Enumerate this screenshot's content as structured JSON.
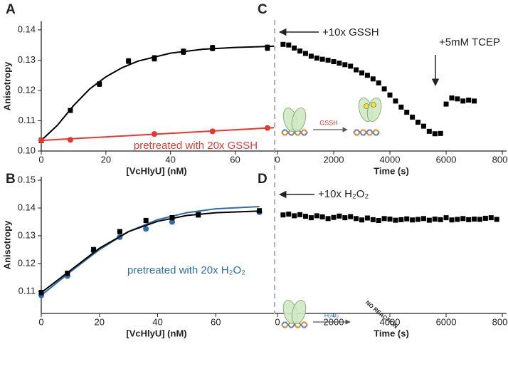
{
  "chart_data": [
    {
      "type": "scatter",
      "panel_label": "A",
      "x_label": "[VcHlyU] (nM)",
      "y_label": "Anisotropy",
      "xlim": [
        0,
        72
      ],
      "ylim": [
        0.1,
        0.1428
      ],
      "xticks": [
        0,
        20,
        40,
        60
      ],
      "yticks": [
        {
          "value": 0.1,
          "label": "0.10"
        },
        0.11,
        0.12,
        0.13,
        0.14
      ],
      "series": [
        {
          "color": "#000000",
          "marker": "square",
          "x": [
            0,
            9,
            18,
            27,
            35,
            44,
            53,
            70
          ],
          "values": [
            0.1035,
            0.1134,
            0.1221,
            0.1297,
            0.1306,
            0.1328,
            0.134,
            0.1341
          ],
          "errors": [
            0.0008,
            0.0007,
            0.0008,
            0.0008,
            0.0009,
            0.0009,
            0.0009,
            0.0009
          ]
        },
        {
          "color": "#000000",
          "marker": "none",
          "x": [
            0,
            5,
            10,
            15,
            20,
            25,
            30,
            40,
            50,
            60,
            72
          ],
          "values": [
            0.1035,
            0.1085,
            0.115,
            0.1205,
            0.1245,
            0.1275,
            0.1297,
            0.1323,
            0.1336,
            0.1342,
            0.1346
          ]
        },
        {
          "color": "#e8372f",
          "marker": "circle",
          "x": [
            0,
            9,
            35,
            53,
            70
          ],
          "values": [
            0.1035,
            0.1037,
            0.1056,
            0.1065,
            0.1076
          ],
          "errors": [
            0.0006,
            0.0006,
            0.0006,
            0.0006,
            0.0006
          ]
        },
        {
          "color": "#e8372f",
          "marker": "none",
          "x": [
            0,
            72
          ],
          "values": [
            0.1035,
            0.1077
          ]
        }
      ],
      "annotations": [
        {
          "text": "pretreated with 20x GSSH",
          "color": "#e8372f"
        }
      ]
    },
    {
      "type": "scatter",
      "panel_label": "B",
      "x_label": "[VcHlyU] (nM)",
      "y_label": "Anisotropy",
      "xlim": [
        0,
        80
      ],
      "ylim": [
        0.102,
        0.1513
      ],
      "xticks": [
        0,
        20,
        40,
        60
      ],
      "yticks": [
        0.11,
        0.12,
        0.13,
        0.14,
        0.15
      ],
      "series": [
        {
          "color": "#2e6ea6",
          "marker": "circle",
          "x": [
            0,
            9,
            18,
            27,
            36,
            45,
            54,
            75
          ],
          "values": [
            0.1085,
            0.1155,
            0.1245,
            0.1295,
            0.1325,
            0.135,
            0.138,
            0.1385
          ],
          "errors": [
            0.0007,
            0.0007,
            0.0007,
            0.0007,
            0.0007,
            0.0007,
            0.0007,
            0.0007
          ]
        },
        {
          "color": "#2e6ea6",
          "marker": "none",
          "x": [
            0,
            10,
            20,
            30,
            40,
            50,
            60,
            75
          ],
          "values": [
            0.1085,
            0.117,
            0.125,
            0.1315,
            0.1358,
            0.1383,
            0.1397,
            0.1405
          ]
        },
        {
          "color": "#000000",
          "marker": "square",
          "x": [
            0,
            9,
            18,
            27,
            36,
            45,
            54,
            75
          ],
          "values": [
            0.1095,
            0.1165,
            0.125,
            0.1315,
            0.1355,
            0.1365,
            0.1375,
            0.139
          ],
          "errors": [
            0.0008,
            0.0008,
            0.0008,
            0.0008,
            0.0008,
            0.0008,
            0.0008,
            0.0008
          ]
        },
        {
          "color": "#000000",
          "marker": "none",
          "x": [
            0,
            10,
            20,
            30,
            40,
            50,
            60,
            75
          ],
          "values": [
            0.1095,
            0.1175,
            0.1255,
            0.1315,
            0.1352,
            0.1373,
            0.1383,
            0.1389
          ]
        }
      ],
      "annotations": [
        {
          "text": "pretreated with 20x H₂O₂",
          "color": "#2e6ea6"
        }
      ]
    },
    {
      "type": "scatter",
      "panel_label": "C",
      "x_label": "Time (s)",
      "xlim": [
        -100,
        8150
      ],
      "ylim": [
        0.1,
        0.1428
      ],
      "xticks": [
        0,
        2000,
        4000,
        6000,
        8000
      ],
      "series": [
        {
          "color": "#000000",
          "marker": "square",
          "x": [
            200,
            400,
            600,
            800,
            1000,
            1200,
            1400,
            1600,
            1800,
            2000,
            2200,
            2400,
            2600,
            2800,
            3000,
            3200,
            3400,
            3600,
            3800,
            4000,
            4200,
            4400,
            4600,
            4800,
            5000,
            5200,
            5400,
            5600,
            5800,
            6000,
            6200,
            6400,
            6600,
            6800,
            7000
          ],
          "values": [
            0.1352,
            0.135,
            0.134,
            0.133,
            0.1322,
            0.1313,
            0.1307,
            0.1303,
            0.13,
            0.1295,
            0.129,
            0.1285,
            0.128,
            0.1268,
            0.1258,
            0.125,
            0.1238,
            0.1225,
            0.1205,
            0.1185,
            0.1165,
            0.1145,
            0.1128,
            0.1112,
            0.1095,
            0.1082,
            0.1065,
            0.1057,
            0.1058,
            0.1155,
            0.1175,
            0.1172,
            0.1165,
            0.1168,
            0.1165
          ]
        }
      ],
      "annotations": [
        {
          "text": "+10x GSSH"
        },
        {
          "text": "+5mM TCEP"
        }
      ],
      "inset_labels": [
        "GSSH"
      ]
    },
    {
      "type": "scatter",
      "panel_label": "D",
      "x_label": "Time (s)",
      "xlim": [
        -100,
        8150
      ],
      "ylim": [
        0.102,
        0.1513
      ],
      "xticks": [
        0,
        2000,
        4000,
        6000,
        8000
      ],
      "series": [
        {
          "color": "#000000",
          "marker": "square",
          "x": [
            200,
            400,
            600,
            800,
            1000,
            1200,
            1400,
            1600,
            1800,
            2000,
            2200,
            2400,
            2600,
            2800,
            3000,
            3200,
            3400,
            3600,
            3800,
            4000,
            4200,
            4400,
            4600,
            4800,
            5000,
            5200,
            5400,
            5600,
            5800,
            6000,
            6200,
            6400,
            6600,
            6800,
            7000,
            7200,
            7400,
            7600,
            7800
          ],
          "values": [
            0.1375,
            0.1378,
            0.1372,
            0.1376,
            0.137,
            0.1365,
            0.1372,
            0.1368,
            0.1362,
            0.1366,
            0.1371,
            0.1365,
            0.1369,
            0.1362,
            0.1357,
            0.1364,
            0.1358,
            0.1355,
            0.1362,
            0.136,
            0.1356,
            0.1358,
            0.1361,
            0.1357,
            0.1359,
            0.1362,
            0.1356,
            0.136,
            0.1358,
            0.1365,
            0.1357,
            0.1359,
            0.1362,
            0.1358,
            0.136,
            0.1359,
            0.1363,
            0.1365,
            0.1359
          ]
        }
      ],
      "annotations": [
        {
          "text": "+10x H₂O₂"
        }
      ],
      "inset_labels": [
        "H₂O₂",
        "NO REACTION"
      ]
    }
  ]
}
